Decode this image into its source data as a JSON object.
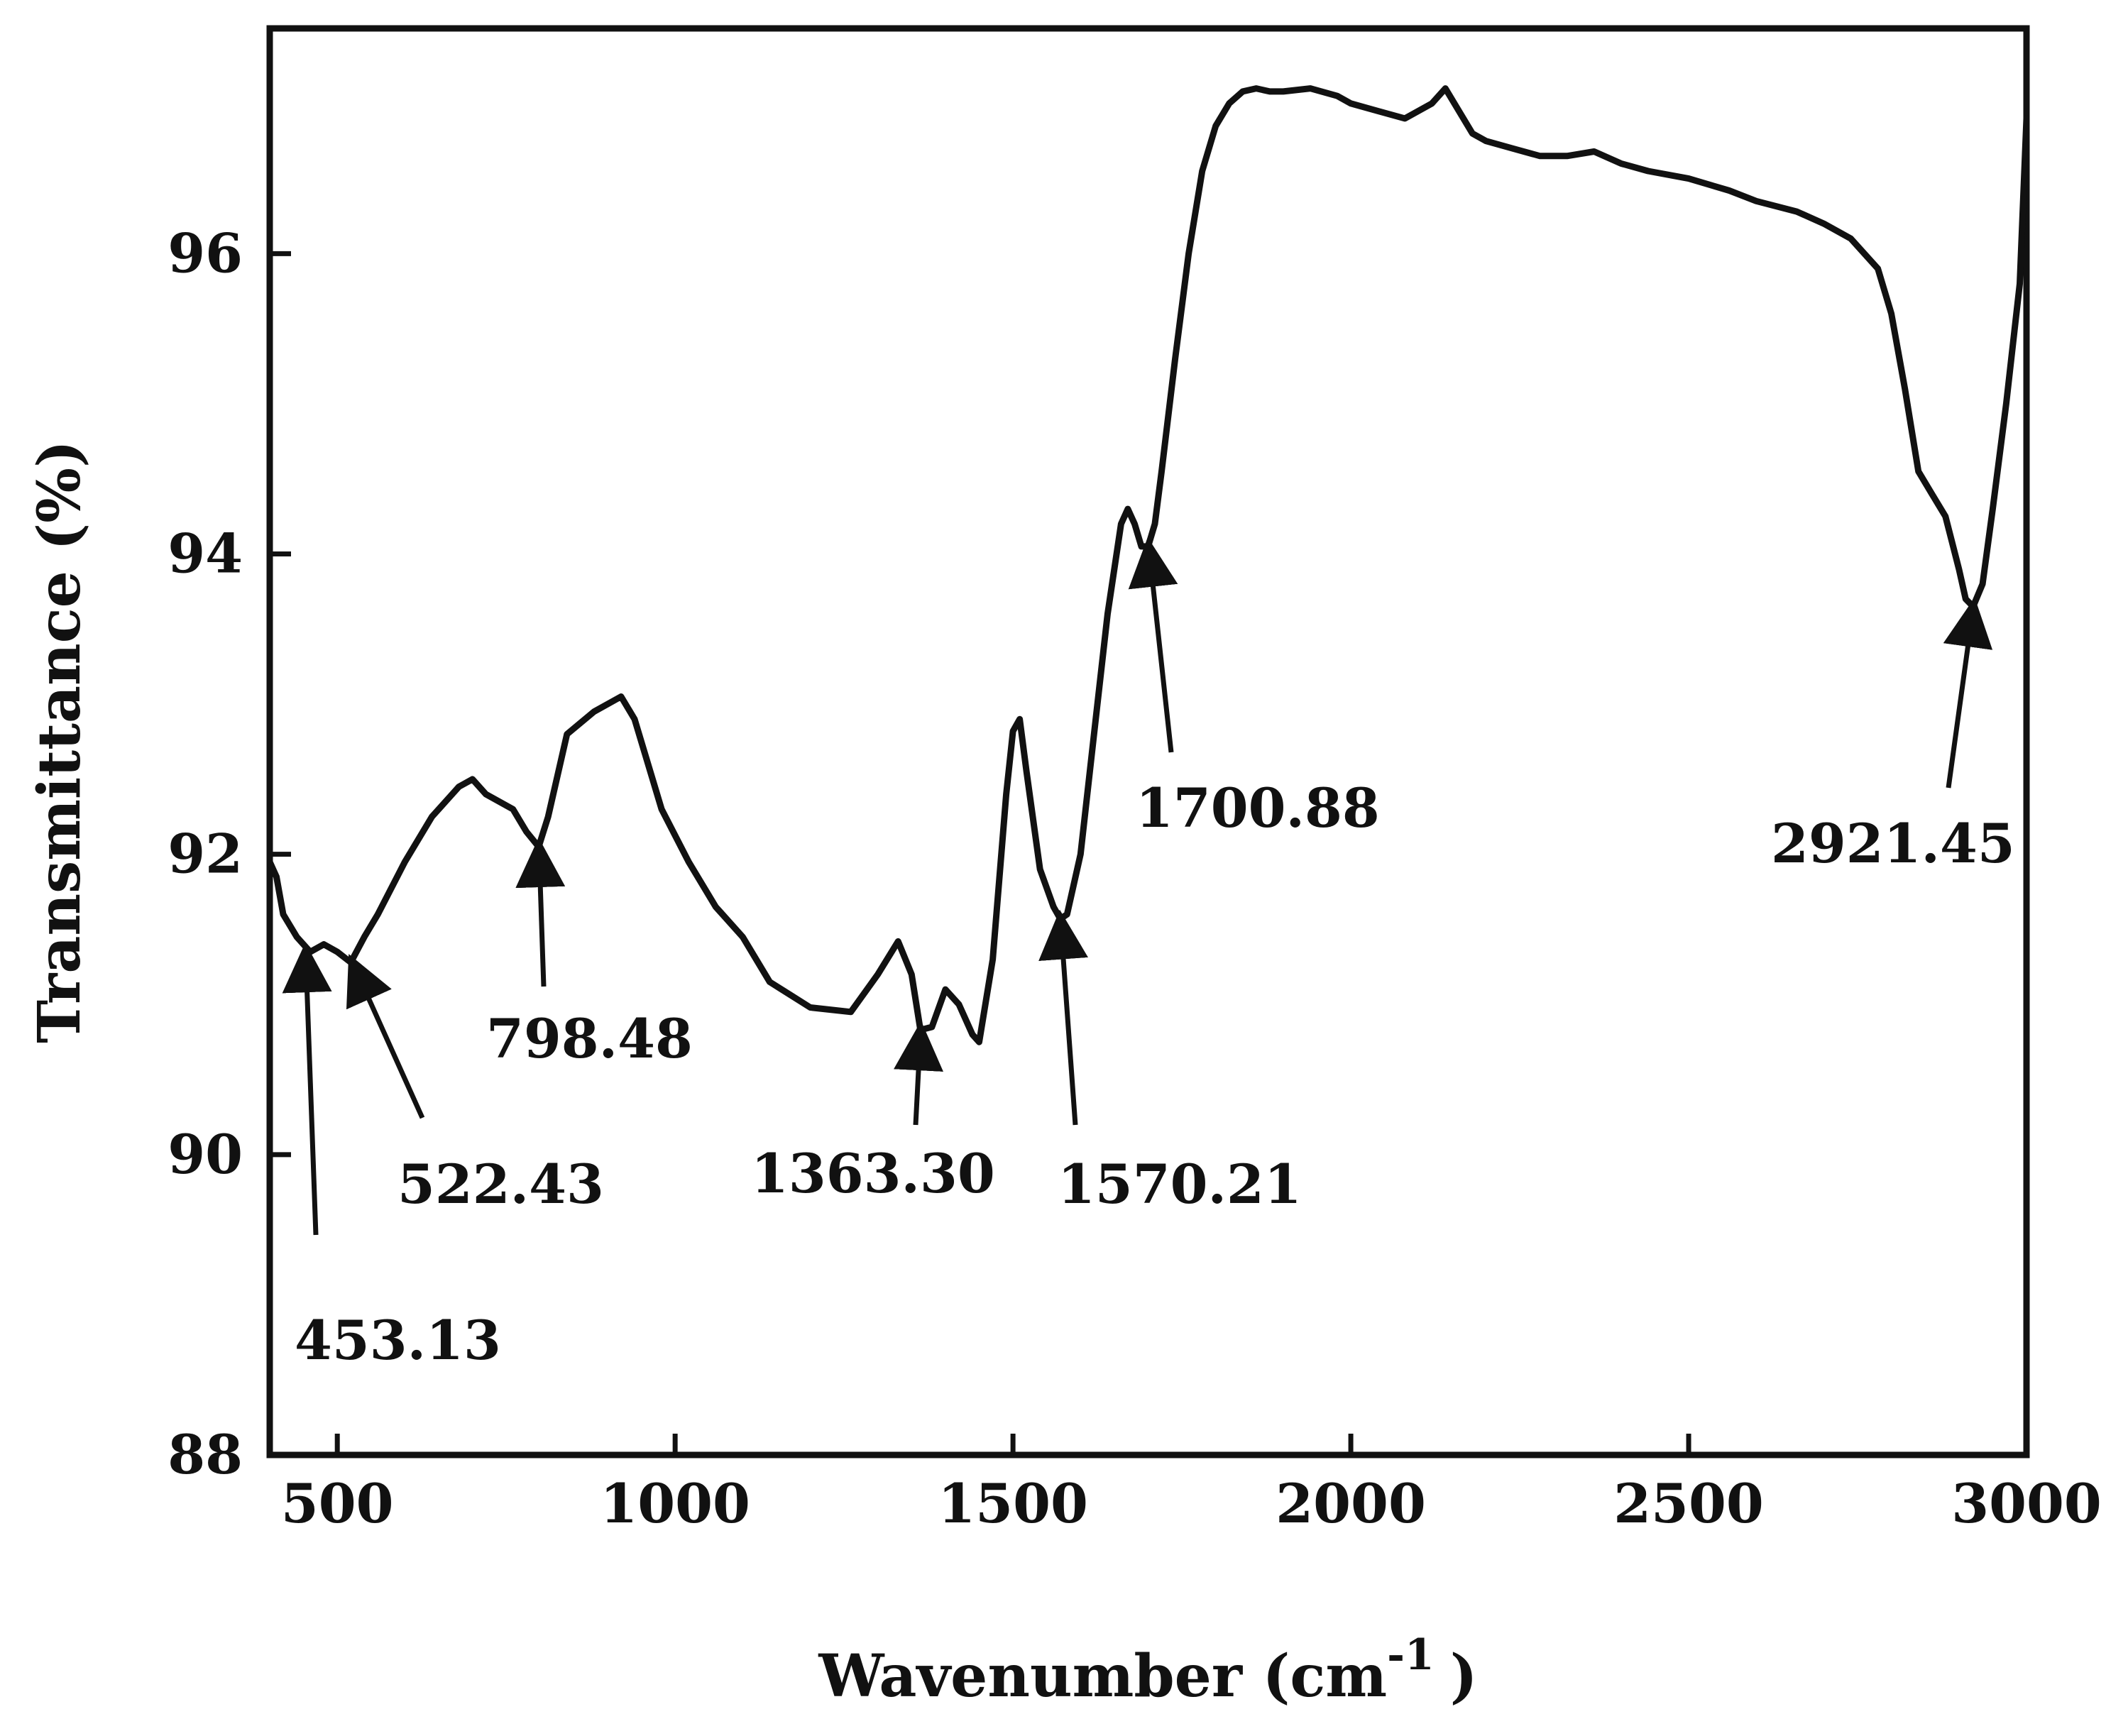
{
  "chart_data": {
    "type": "line",
    "title": "",
    "xlabel": "Wavenumber (cm",
    "xlabel_sup": "-1",
    "xlabel_close": ")",
    "ylabel": "Transmittance (%)",
    "xlim": [
      400,
      3000
    ],
    "ylim": [
      88,
      97.5
    ],
    "x_ticks": [
      500,
      1000,
      1500,
      2000,
      2500,
      3000
    ],
    "x_tick_labels": [
      "500",
      "1000",
      "1500",
      "2000",
      "2500",
      "3000"
    ],
    "y_ticks": [
      88,
      90,
      92,
      94,
      96
    ],
    "y_tick_labels": [
      "88",
      "90",
      "92",
      "94",
      "96"
    ],
    "grid": false,
    "series": [
      {
        "line_color": "#111111",
        "x": [
          400,
          410,
          420,
          440,
          460,
          480,
          500,
          520,
          540,
          560,
          600,
          640,
          680,
          700,
          720,
          760,
          780,
          798,
          812,
          840,
          880,
          920,
          940,
          980,
          1020,
          1060,
          1100,
          1140,
          1200,
          1260,
          1300,
          1330,
          1350,
          1363,
          1380,
          1400,
          1420,
          1440,
          1450,
          1470,
          1490,
          1500,
          1510,
          1520,
          1540,
          1560,
          1570,
          1580,
          1600,
          1620,
          1640,
          1660,
          1670,
          1680,
          1690,
          1700,
          1710,
          1720,
          1740,
          1760,
          1780,
          1800,
          1820,
          1840,
          1860,
          1880,
          1900,
          1940,
          1980,
          2000,
          2040,
          2080,
          2120,
          2140,
          2160,
          2180,
          2200,
          2240,
          2280,
          2320,
          2360,
          2400,
          2440,
          2500,
          2560,
          2600,
          2660,
          2700,
          2740,
          2780,
          2800,
          2820,
          2840,
          2860,
          2880,
          2900,
          2910,
          2921,
          2935,
          2950,
          2970,
          2990,
          3000
        ],
        "y": [
          91.95,
          91.85,
          91.6,
          91.45,
          91.35,
          91.4,
          91.35,
          91.28,
          91.45,
          91.6,
          91.95,
          92.25,
          92.45,
          92.5,
          92.4,
          92.3,
          92.15,
          92.05,
          92.25,
          92.8,
          92.95,
          93.05,
          92.9,
          92.3,
          91.95,
          91.65,
          91.45,
          91.15,
          90.98,
          90.95,
          91.2,
          91.42,
          91.2,
          90.83,
          90.85,
          91.1,
          91.0,
          90.8,
          90.75,
          91.3,
          92.4,
          92.82,
          92.9,
          92.55,
          91.9,
          91.65,
          91.57,
          91.6,
          92.0,
          92.8,
          93.6,
          94.2,
          94.3,
          94.2,
          94.05,
          94.05,
          94.2,
          94.55,
          95.3,
          96.0,
          96.55,
          96.85,
          97.0,
          97.08,
          97.1,
          97.08,
          97.08,
          97.1,
          97.05,
          97.0,
          96.95,
          96.9,
          97.0,
          97.1,
          96.95,
          96.8,
          96.75,
          96.7,
          96.65,
          96.65,
          96.68,
          96.6,
          96.55,
          96.5,
          96.42,
          96.35,
          96.28,
          96.2,
          96.1,
          95.9,
          95.6,
          95.1,
          94.55,
          94.4,
          94.25,
          93.9,
          93.7,
          93.65,
          93.8,
          94.3,
          95.0,
          95.8,
          96.9
        ]
      }
    ],
    "annotations": [
      {
        "label": "453.13",
        "target_x": 453.13,
        "target_y": 91.35
      },
      {
        "label": "522.43",
        "target_x": 522.43,
        "target_y": 91.28
      },
      {
        "label": "798.48",
        "target_x": 798.48,
        "target_y": 92.05
      },
      {
        "label": "1363.30",
        "target_x": 1363.3,
        "target_y": 90.83
      },
      {
        "label": "1570.21",
        "target_x": 1570.21,
        "target_y": 91.57
      },
      {
        "label": "1700.88",
        "target_x": 1700.88,
        "target_y": 94.05
      },
      {
        "label": "2921.45",
        "target_x": 2921.45,
        "target_y": 93.65
      }
    ]
  }
}
